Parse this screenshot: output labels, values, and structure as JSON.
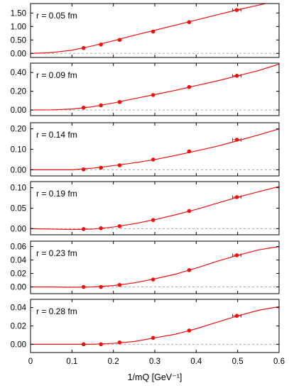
{
  "chart_data": {
    "type": "line",
    "xlabel": "1/mQ [GeV⁻¹]",
    "xlim": [
      0,
      0.6
    ],
    "x_ticks": [
      "0",
      "0.1",
      "0.2",
      "0.3",
      "0.4",
      "0.5",
      "0.6"
    ],
    "grid": false,
    "colors": {
      "curve": "#ee1111",
      "points": "#ee1111",
      "zero_line": "#aaaaaa"
    },
    "panels": [
      {
        "label": "r = 0.05 fm",
        "ylim": [
          -0.15,
          1.85
        ],
        "y_ticks": [
          "0.00",
          "0.50",
          "1.00",
          "1.50"
        ],
        "y_tick_values": [
          0,
          0.5,
          1.0,
          1.5
        ],
        "curve_x": [
          0,
          0.05,
          0.1,
          0.15,
          0.2,
          0.25,
          0.3,
          0.35,
          0.4,
          0.45,
          0.5,
          0.55,
          0.6
        ],
        "curve_y": [
          0,
          0.03,
          0.12,
          0.28,
          0.47,
          0.67,
          0.86,
          1.05,
          1.24,
          1.43,
          1.62,
          1.79,
          1.96
        ],
        "points": [
          {
            "x": 0.128,
            "y": 0.2
          },
          {
            "x": 0.17,
            "y": 0.33
          },
          {
            "x": 0.215,
            "y": 0.5
          },
          {
            "x": 0.296,
            "y": 0.81
          },
          {
            "x": 0.383,
            "y": 1.16
          },
          {
            "x": 0.498,
            "y": 1.61
          }
        ]
      },
      {
        "label": "r = 0.09 fm",
        "ylim": [
          -0.06,
          0.5
        ],
        "y_ticks": [
          "0.00",
          "0.20",
          "0.40"
        ],
        "y_tick_values": [
          0,
          0.2,
          0.4
        ],
        "curve_x": [
          0,
          0.05,
          0.1,
          0.15,
          0.2,
          0.25,
          0.3,
          0.35,
          0.4,
          0.45,
          0.5,
          0.55,
          0.6
        ],
        "curve_y": [
          0,
          0.002,
          0.01,
          0.035,
          0.075,
          0.12,
          0.165,
          0.21,
          0.26,
          0.31,
          0.365,
          0.42,
          0.49
        ],
        "points": [
          {
            "x": 0.128,
            "y": 0.025
          },
          {
            "x": 0.17,
            "y": 0.05
          },
          {
            "x": 0.215,
            "y": 0.085
          },
          {
            "x": 0.296,
            "y": 0.16
          },
          {
            "x": 0.383,
            "y": 0.245
          },
          {
            "x": 0.498,
            "y": 0.365
          }
        ]
      },
      {
        "label": "r = 0.14 fm",
        "ylim": [
          -0.03,
          0.23
        ],
        "y_ticks": [
          "0.00",
          "0.10",
          "0.20"
        ],
        "y_tick_values": [
          0,
          0.1,
          0.2
        ],
        "curve_x": [
          0,
          0.05,
          0.1,
          0.15,
          0.2,
          0.25,
          0.3,
          0.35,
          0.4,
          0.45,
          0.5,
          0.55,
          0.6
        ],
        "curve_y": [
          0,
          0.0,
          0.0,
          0.008,
          0.02,
          0.034,
          0.05,
          0.07,
          0.092,
          0.115,
          0.142,
          0.17,
          0.2
        ],
        "points": [
          {
            "x": 0.128,
            "y": 0.002
          },
          {
            "x": 0.17,
            "y": 0.01
          },
          {
            "x": 0.215,
            "y": 0.022
          },
          {
            "x": 0.296,
            "y": 0.05
          },
          {
            "x": 0.383,
            "y": 0.09
          },
          {
            "x": 0.498,
            "y": 0.147
          }
        ]
      },
      {
        "label": "r = 0.19 fm",
        "ylim": [
          -0.015,
          0.115
        ],
        "y_ticks": [
          "0.00",
          "0.05",
          "0.10"
        ],
        "y_tick_values": [
          0,
          0.05,
          0.1
        ],
        "curve_x": [
          0,
          0.05,
          0.1,
          0.15,
          0.2,
          0.25,
          0.3,
          0.35,
          0.4,
          0.45,
          0.5,
          0.55,
          0.6
        ],
        "curve_y": [
          0,
          -0.001,
          -0.002,
          -0.001,
          0.004,
          0.012,
          0.022,
          0.034,
          0.047,
          0.062,
          0.077,
          0.09,
          0.103
        ],
        "points": [
          {
            "x": 0.128,
            "y": -0.001
          },
          {
            "x": 0.17,
            "y": 0.001
          },
          {
            "x": 0.215,
            "y": 0.006
          },
          {
            "x": 0.296,
            "y": 0.021
          },
          {
            "x": 0.383,
            "y": 0.043
          },
          {
            "x": 0.498,
            "y": 0.077
          }
        ]
      },
      {
        "label": "r = 0.23 fm",
        "ylim": [
          -0.01,
          0.068
        ],
        "y_ticks": [
          "0.00",
          "0.02",
          "0.04",
          "0.06"
        ],
        "y_tick_values": [
          0,
          0.02,
          0.04,
          0.06
        ],
        "curve_x": [
          0,
          0.05,
          0.1,
          0.15,
          0.2,
          0.25,
          0.3,
          0.35,
          0.4,
          0.45,
          0.5,
          0.55,
          0.6
        ],
        "curve_y": [
          0,
          0.0,
          -0.0005,
          0.0,
          0.002,
          0.006,
          0.012,
          0.019,
          0.028,
          0.038,
          0.047,
          0.055,
          0.06
        ],
        "points": [
          {
            "x": 0.128,
            "y": 0.0
          },
          {
            "x": 0.17,
            "y": 0.0
          },
          {
            "x": 0.215,
            "y": 0.003
          },
          {
            "x": 0.296,
            "y": 0.011
          },
          {
            "x": 0.383,
            "y": 0.025
          },
          {
            "x": 0.498,
            "y": 0.047
          }
        ]
      },
      {
        "label": "r = 0.28 fm",
        "ylim": [
          -0.009,
          0.049
        ],
        "y_ticks": [
          "0.00",
          "0.02",
          "0.04"
        ],
        "y_tick_values": [
          0,
          0.02,
          0.04
        ],
        "curve_x": [
          0,
          0.05,
          0.1,
          0.15,
          0.2,
          0.25,
          0.3,
          0.35,
          0.4,
          0.45,
          0.5,
          0.55,
          0.6
        ],
        "curve_y": [
          0,
          0.0,
          0.0,
          0.0,
          0.001,
          0.003,
          0.007,
          0.011,
          0.017,
          0.024,
          0.031,
          0.037,
          0.041
        ],
        "points": [
          {
            "x": 0.128,
            "y": 0.0
          },
          {
            "x": 0.17,
            "y": 0.0
          },
          {
            "x": 0.215,
            "y": 0.002
          },
          {
            "x": 0.296,
            "y": 0.007
          },
          {
            "x": 0.383,
            "y": 0.015
          },
          {
            "x": 0.498,
            "y": 0.031
          }
        ]
      }
    ]
  }
}
